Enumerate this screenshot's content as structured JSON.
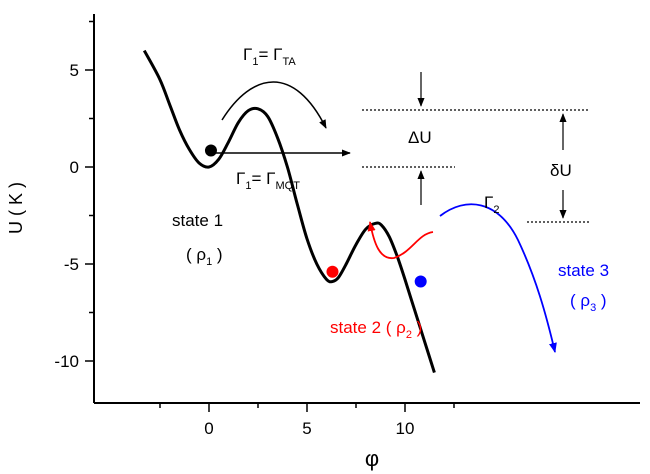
{
  "chart_data": {
    "type": "line",
    "xlabel": "φ",
    "ylabel": "U ( K )",
    "xlim": [
      -4,
      14.5
    ],
    "ylim": [
      -12,
      8
    ],
    "xticks": [
      0,
      5,
      10
    ],
    "yticks": [
      5,
      0,
      -5,
      -10
    ],
    "series": [
      {
        "color": "#000000",
        "x": [
          -3.3,
          -2.5,
          -2.0,
          -1.5,
          -1.0,
          -0.5,
          0.0,
          0.5,
          1.0,
          1.5,
          2.0,
          2.5,
          3.0,
          3.5,
          4.0,
          4.5,
          5.0,
          5.5,
          6.0,
          6.3,
          6.6,
          7.0,
          7.5,
          8.0,
          8.5,
          8.8,
          9.2,
          9.6,
          10.0,
          10.5,
          11.0,
          11.5
        ],
        "y": [
          6.0,
          4.5,
          3.2,
          1.9,
          0.9,
          0.2,
          0.0,
          0.4,
          1.3,
          2.3,
          2.9,
          3.0,
          2.6,
          1.5,
          0.0,
          -1.9,
          -3.7,
          -5.0,
          -5.8,
          -5.9,
          -5.7,
          -5.0,
          -4.0,
          -3.2,
          -2.9,
          -3.0,
          -3.6,
          -4.6,
          -5.8,
          -7.4,
          -9.0,
          -10.6
        ]
      }
    ],
    "points": [
      {
        "x": 0.1,
        "y": 0.85,
        "color": "#000000"
      },
      {
        "x": 6.3,
        "y": -5.4,
        "color": "#ff0000"
      },
      {
        "x": 10.8,
        "y": -5.9,
        "color": "#0000ff"
      }
    ],
    "annotations": {
      "gamma_ta": {
        "main": "Γ",
        "sub1": "1",
        "eq": "= Γ",
        "sub2": "TA"
      },
      "gamma_mqt": {
        "main": "Γ",
        "sub1": "1",
        "eq": "= Γ",
        "sub2": "MQT"
      },
      "gamma2": {
        "main": "Γ",
        "sub": "2"
      },
      "delta_u": "ΔU",
      "delta_U": "δU",
      "state1": {
        "label": "state 1",
        "open": "( ρ",
        "sub": "1",
        "close": ")"
      },
      "state2": {
        "label": "state 2 ( ρ",
        "sub": "2",
        "close": ")",
        "color": "#ff0000"
      },
      "state3": {
        "label": "state 3",
        "open": "( ρ",
        "sub": "3",
        "close": ")",
        "color": "#0000ff"
      }
    }
  }
}
